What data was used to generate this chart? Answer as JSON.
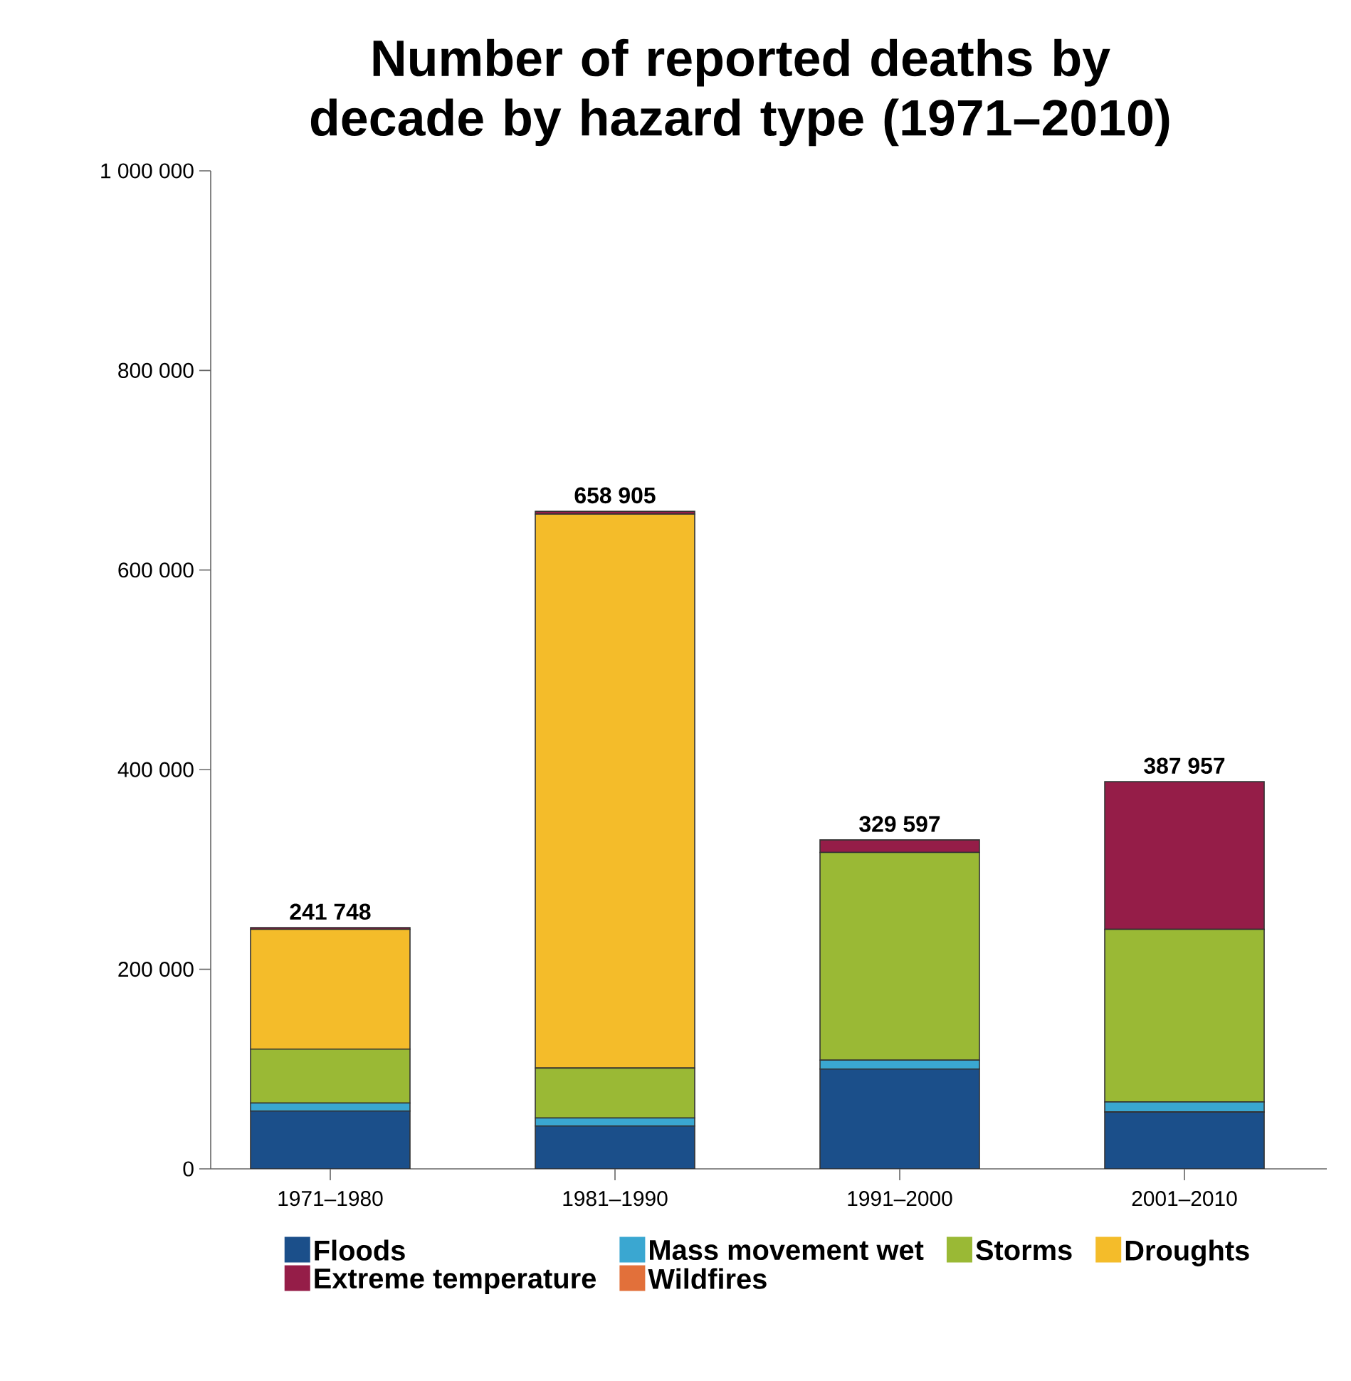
{
  "chart_data": {
    "type": "bar",
    "stacked": true,
    "title": "Number of reported deaths by decade by hazard type (1971–2010)",
    "categories": [
      "1971–1980",
      "1981–1990",
      "1991–2000",
      "2001–2010"
    ],
    "series": [
      {
        "name": "Floods",
        "color": "#1b4f8a",
        "values": [
          58000,
          43000,
          100000,
          57000
        ]
      },
      {
        "name": "Mass movement wet",
        "color": "#3aa7d1",
        "values": [
          8000,
          8000,
          9000,
          10000
        ]
      },
      {
        "name": "Storms",
        "color": "#9ab935",
        "values": [
          54000,
          50000,
          208000,
          173000
        ]
      },
      {
        "name": "Droughts",
        "color": "#f4bc2a",
        "values": [
          120000,
          555000,
          0,
          0
        ]
      },
      {
        "name": "Extreme temperature",
        "color": "#951d48",
        "values": [
          1748,
          2905,
          12597,
          147957
        ]
      },
      {
        "name": "Wildfires",
        "color": "#e2703a",
        "values": [
          null,
          null,
          null,
          null
        ]
      }
    ],
    "totals": [
      "241 748",
      "658 905",
      "329 597",
      "387 957"
    ],
    "ylim": [
      0,
      1000000
    ],
    "yticks": [
      0,
      {
        "value": 200000,
        "label": "200 000"
      },
      {
        "value": 400000,
        "label": "400 000"
      },
      {
        "value": 600000,
        "label": "600 000"
      },
      {
        "value": 800000,
        "label": "800 000"
      },
      {
        "value": 1000000,
        "label": "1 000 000"
      }
    ],
    "legend": "bottom"
  }
}
